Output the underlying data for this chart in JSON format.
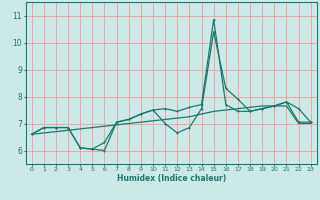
{
  "title": "",
  "xlabel": "Humidex (Indice chaleur)",
  "ylabel": "",
  "background_color": "#cce8e8",
  "grid_color": "#ff9999",
  "line_color": "#1a7a6e",
  "xlim": [
    -0.5,
    23.5
  ],
  "ylim": [
    5.5,
    11.5
  ],
  "yticks": [
    6,
    7,
    8,
    9,
    10,
    11
  ],
  "xticks": [
    0,
    1,
    2,
    3,
    4,
    5,
    6,
    7,
    8,
    9,
    10,
    11,
    12,
    13,
    14,
    15,
    16,
    17,
    18,
    19,
    20,
    21,
    22,
    23
  ],
  "series1_x": [
    0,
    1,
    2,
    3,
    4,
    5,
    6,
    7,
    8,
    9,
    10,
    11,
    12,
    13,
    14,
    15,
    16,
    17,
    18,
    19,
    20,
    21,
    22,
    23
  ],
  "series1_y": [
    6.6,
    6.85,
    6.85,
    6.85,
    6.1,
    6.05,
    6.0,
    7.05,
    7.15,
    7.35,
    7.5,
    7.0,
    6.65,
    6.85,
    7.55,
    10.4,
    8.3,
    7.9,
    7.45,
    7.55,
    7.65,
    7.8,
    7.55,
    7.05
  ],
  "series2_x": [
    0,
    1,
    2,
    3,
    4,
    5,
    6,
    7,
    8,
    9,
    10,
    11,
    12,
    13,
    14,
    15,
    16,
    17,
    18,
    19,
    20,
    21,
    22,
    23
  ],
  "series2_y": [
    6.6,
    6.85,
    6.85,
    6.85,
    6.1,
    6.05,
    6.3,
    7.05,
    7.15,
    7.35,
    7.5,
    7.55,
    7.45,
    7.6,
    7.7,
    10.85,
    7.7,
    7.45,
    7.45,
    7.55,
    7.65,
    7.8,
    7.05,
    7.05
  ],
  "series3_x": [
    0,
    1,
    2,
    3,
    4,
    5,
    6,
    7,
    8,
    9,
    10,
    11,
    12,
    13,
    14,
    15,
    16,
    17,
    18,
    19,
    20,
    21,
    22,
    23
  ],
  "series3_y": [
    6.6,
    6.65,
    6.7,
    6.75,
    6.8,
    6.85,
    6.9,
    6.95,
    7.0,
    7.05,
    7.1,
    7.15,
    7.2,
    7.25,
    7.35,
    7.45,
    7.5,
    7.55,
    7.6,
    7.65,
    7.65,
    7.65,
    7.0,
    7.0
  ]
}
